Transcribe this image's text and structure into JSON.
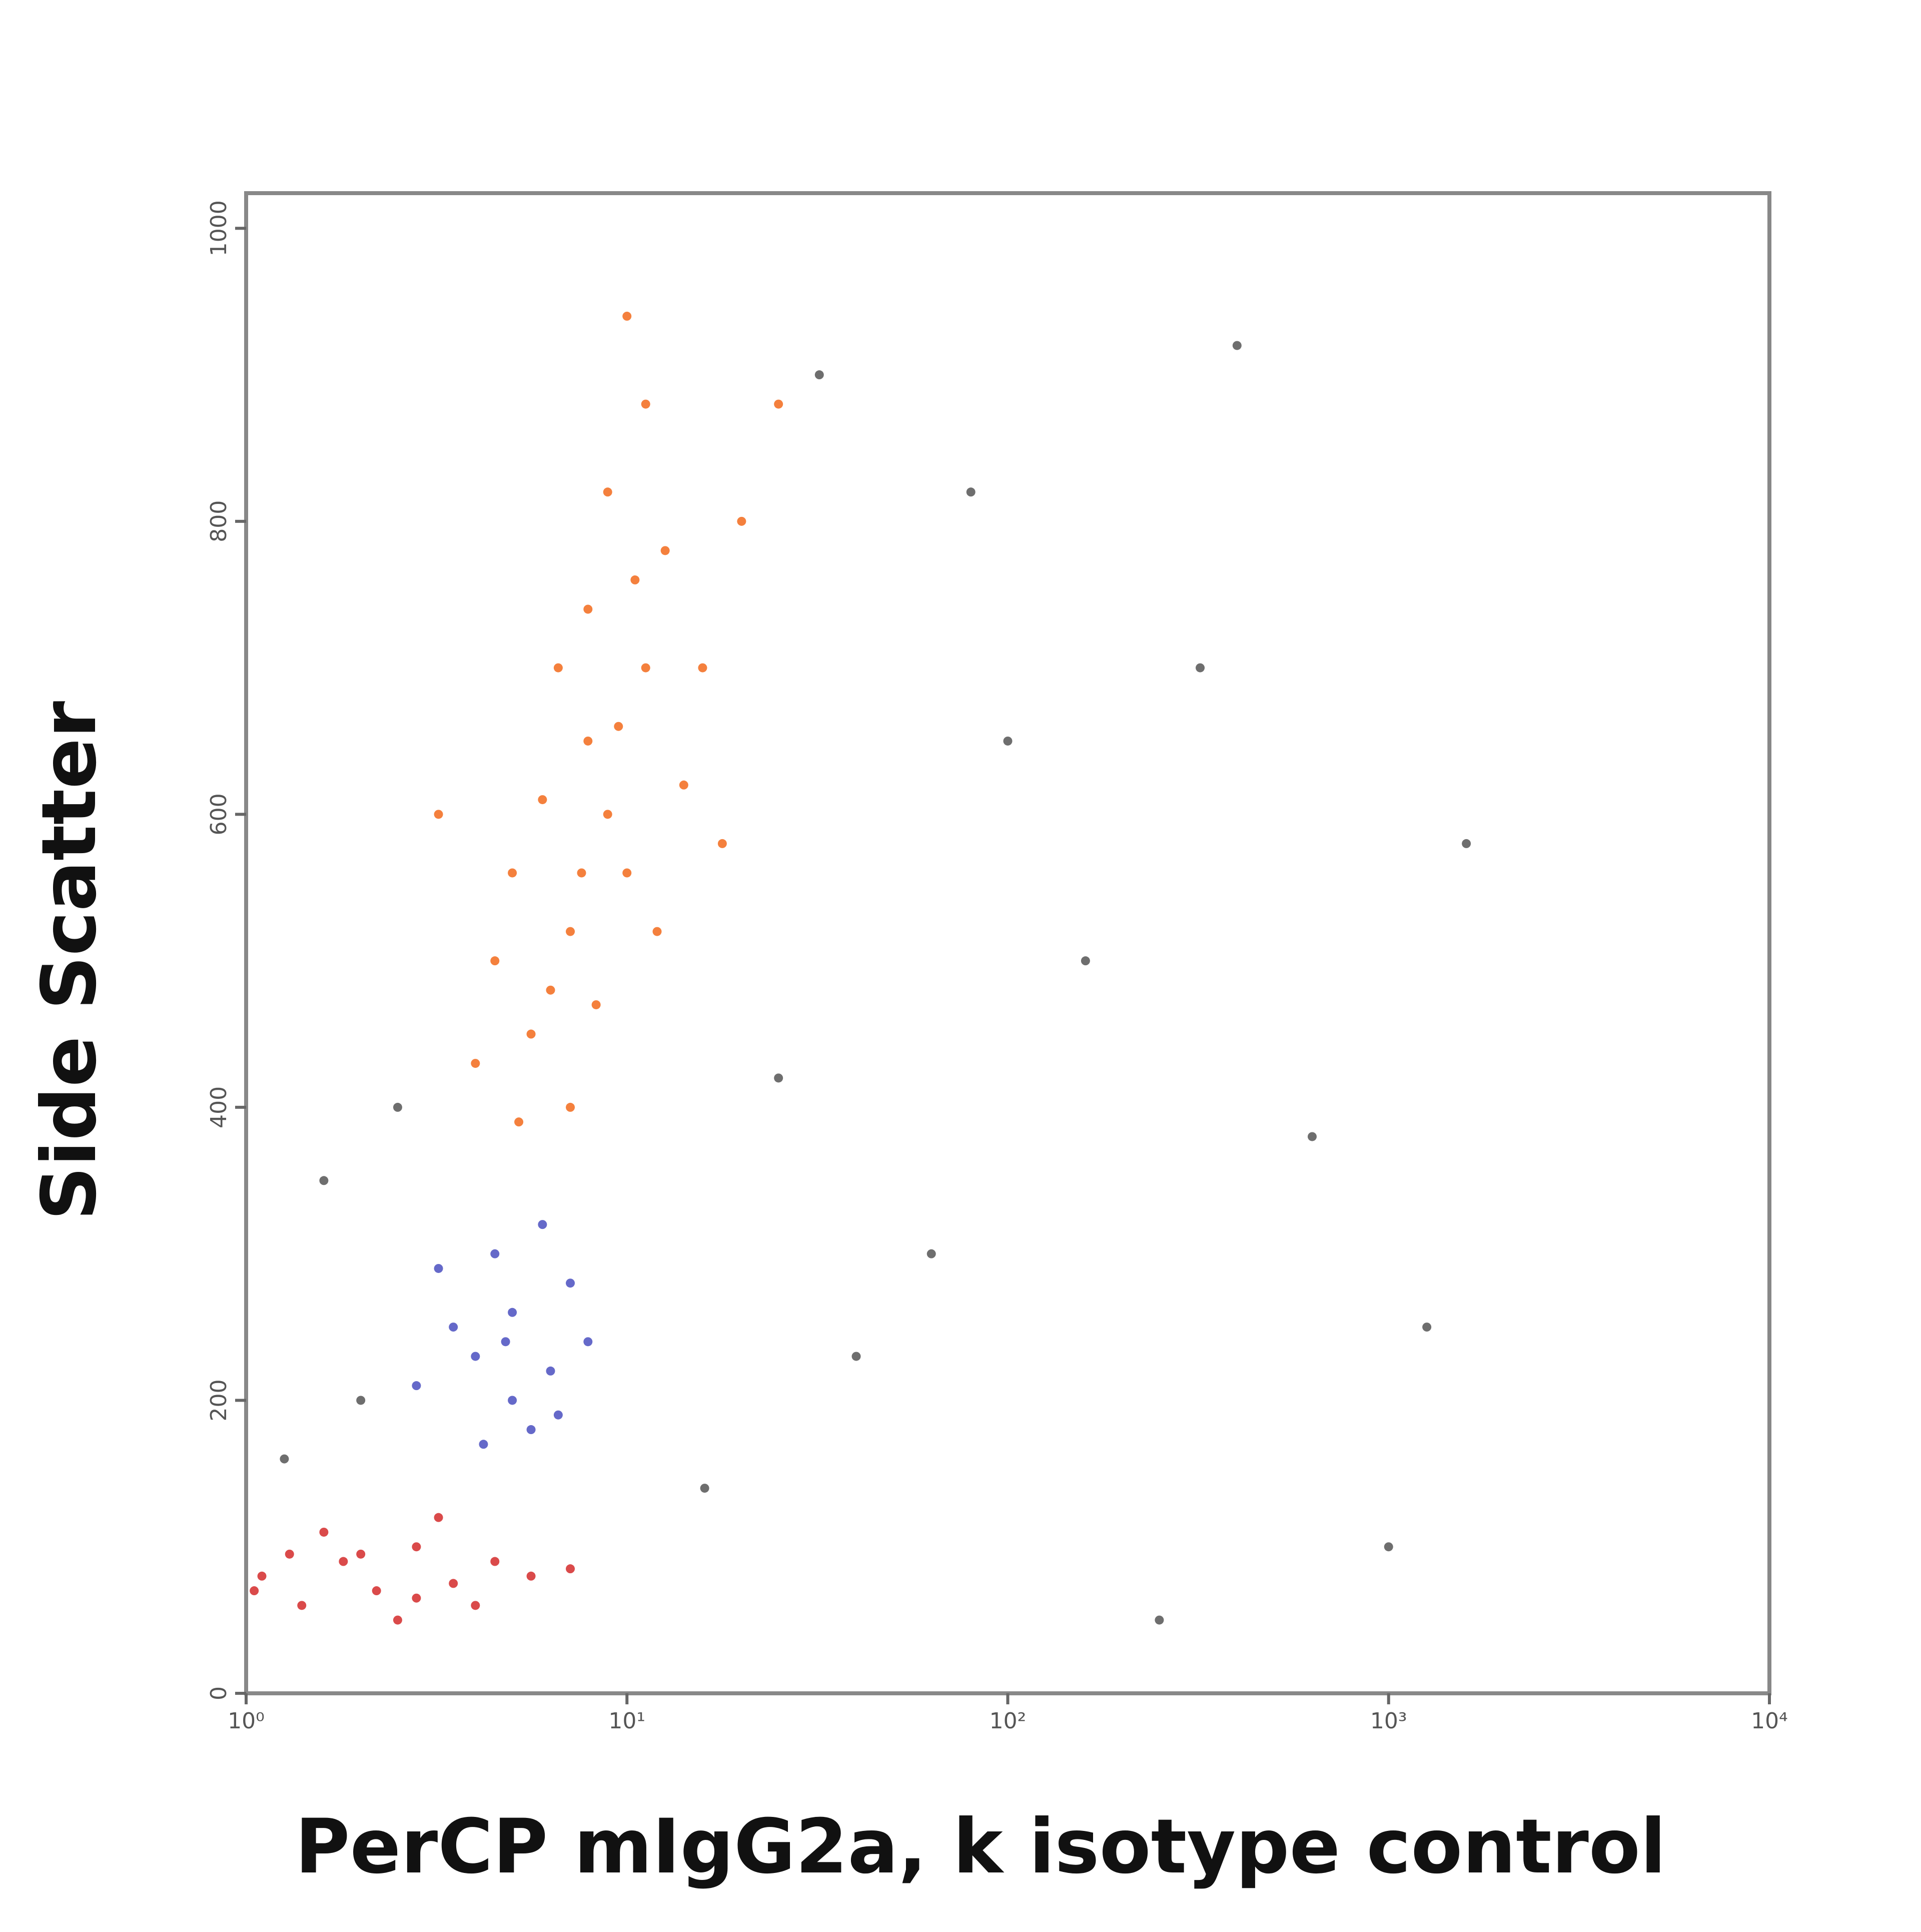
{
  "chart_data": {
    "type": "scatter",
    "x_label": "PerCP mIgG2a, k isotype control",
    "y_label": "Side Scatter",
    "xscale": "log",
    "xlim": [
      1,
      10000
    ],
    "xticks": [
      {
        "value": 1,
        "label": "10⁰"
      },
      {
        "value": 10,
        "label": "10¹"
      },
      {
        "value": 100,
        "label": "10²"
      },
      {
        "value": 1000,
        "label": "10³"
      },
      {
        "value": 10000,
        "label": "10⁴"
      }
    ],
    "ylim": [
      0,
      1024
    ],
    "yticks": [
      0,
      200,
      400,
      600,
      800,
      1000
    ],
    "series": [
      {
        "color": "#f26a1b",
        "x": [
          8.9,
          7.1,
          11.2,
          5.6,
          12.6,
          7.9,
          10,
          6.3,
          5.0,
          14.1,
          8.9,
          11.2,
          7.1,
          4.5,
          15.8,
          7.9,
          10,
          4.0,
          20,
          6.0,
          7.6,
          9.5,
          12,
          5.2,
          17.8,
          3.2,
          25,
          8.3,
          10.5,
          6.6
        ],
        "values": [
          600,
          520,
          700,
          450,
          780,
          650,
          560,
          480,
          560,
          620,
          820,
          880,
          400,
          500,
          700,
          740,
          940,
          430,
          800,
          610,
          560,
          660,
          520,
          390,
          580,
          600,
          880,
          470,
          760,
          700
        ]
      },
      {
        "color": "#4a4fc0",
        "x": [
          4.0,
          5.0,
          6.3,
          4.5,
          5.6,
          3.5,
          7.1,
          5.0,
          3.2,
          7.9,
          4.2,
          6.0,
          4.8,
          2.8,
          6.6
        ],
        "values": [
          230,
          260,
          220,
          300,
          180,
          250,
          280,
          200,
          290,
          240,
          170,
          320,
          240,
          210,
          190
        ]
      },
      {
        "color": "#d42a2a",
        "x": [
          1.1,
          1.4,
          1.8,
          2.2,
          2.8,
          3.5,
          4.5,
          5.6,
          1.6,
          2.5,
          3.2,
          2.0,
          4.0,
          7.1,
          1.3,
          2.8,
          1.05
        ],
        "values": [
          80,
          60,
          90,
          70,
          100,
          75,
          90,
          80,
          110,
          50,
          120,
          95,
          60,
          85,
          95,
          65,
          70
        ]
      },
      {
        "color": "#555555",
        "x": [
          32,
          400,
          63,
          160,
          1600,
          100,
          40,
          320,
          1000,
          16,
          2.0,
          1.6,
          630,
          80,
          1.26,
          2.5,
          250,
          25,
          1260
        ],
        "values": [
          900,
          920,
          300,
          500,
          580,
          650,
          230,
          700,
          100,
          140,
          200,
          350,
          380,
          820,
          160,
          400,
          50,
          420,
          250
        ]
      }
    ]
  }
}
